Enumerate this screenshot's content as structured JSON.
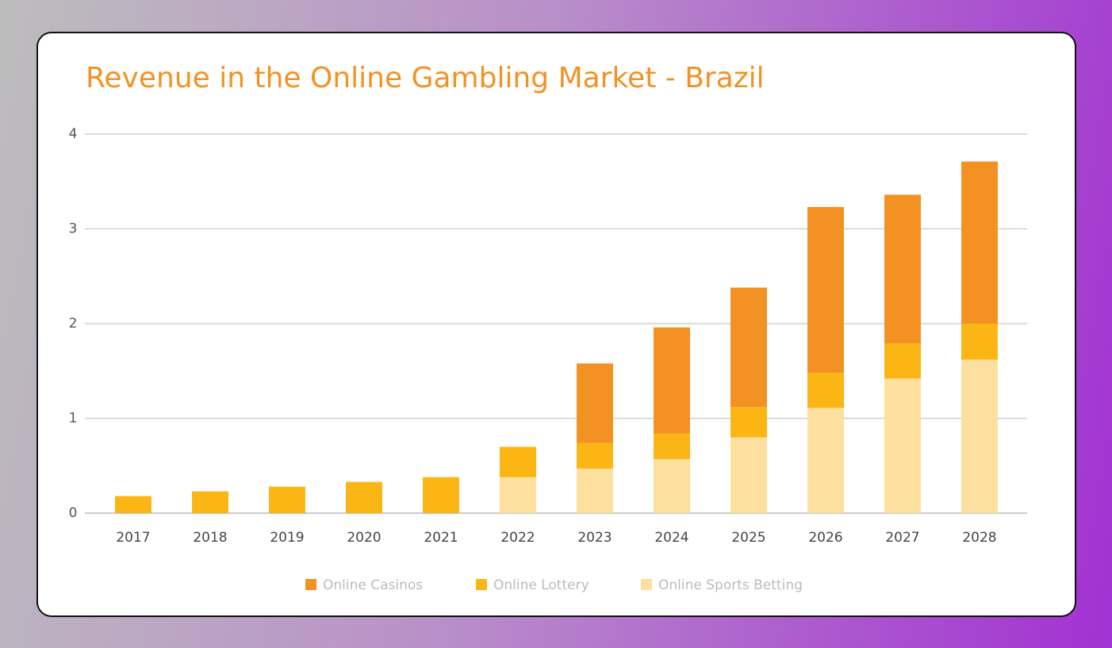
{
  "chart_data": {
    "type": "stacked-bar",
    "title": "Revenue in the Online Gambling Market - Brazil",
    "categories": [
      "2017",
      "2018",
      "2019",
      "2020",
      "2021",
      "2022",
      "2023",
      "2024",
      "2025",
      "2026",
      "2027",
      "2028"
    ],
    "series": [
      {
        "name": "Online Casinos",
        "color": "#f39223",
        "values": [
          0,
          0,
          0,
          0,
          0,
          0,
          0.84,
          1.12,
          1.26,
          1.75,
          1.57,
          1.71
        ]
      },
      {
        "name": "Online Lottery",
        "color": "#fbb616",
        "values": [
          0.18,
          0.23,
          0.28,
          0.33,
          0.38,
          0.32,
          0.27,
          0.27,
          0.32,
          0.37,
          0.37,
          0.38
        ]
      },
      {
        "name": "Online Sports Betting",
        "color": "#fddf9e",
        "values": [
          0,
          0,
          0,
          0,
          0,
          0.38,
          0.47,
          0.57,
          0.8,
          1.11,
          1.42,
          1.62
        ]
      }
    ],
    "ylim": [
      0,
      4
    ],
    "yticks": [
      0,
      1,
      2,
      3,
      4
    ],
    "grid": true
  }
}
